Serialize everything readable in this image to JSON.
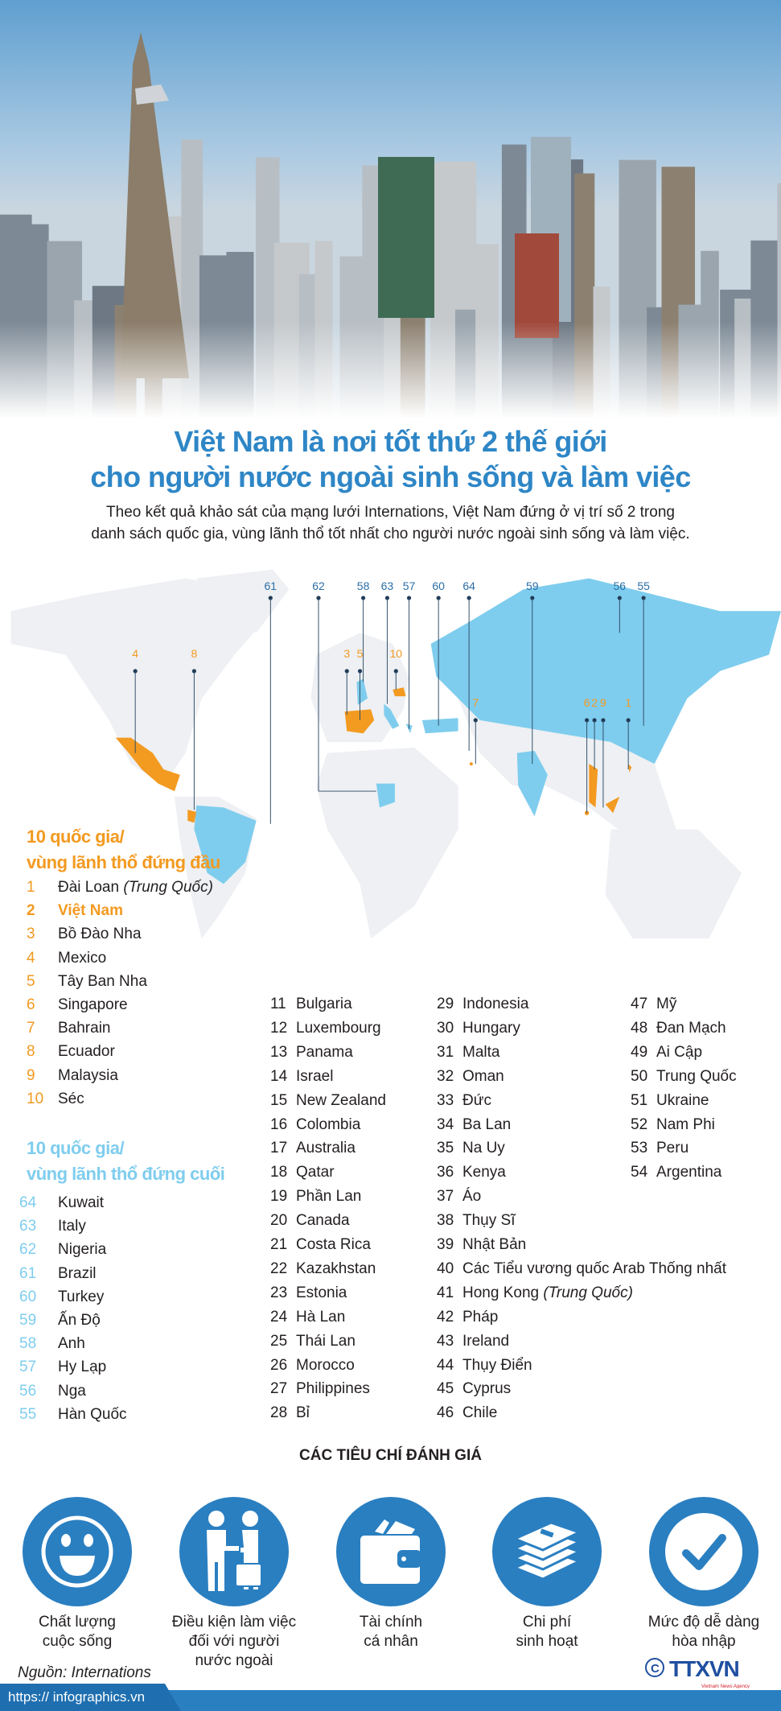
{
  "title": {
    "line1": "Việt Nam là nơi tốt thứ 2 thế giới",
    "line2": "cho người nước ngoài sinh sống và làm việc"
  },
  "subtitle": {
    "line1": "Theo kết quả khảo sát của mạng lưới Internations, Việt Nam đứng ở vị trí số 2 trong",
    "line2": "danh sách quốc gia, vùng lãnh thổ tốt nhất cho người nước ngoài sinh sống và làm việc."
  },
  "colors": {
    "title": "#2e86c6",
    "top": "#f39a21",
    "bottom": "#7fcdee",
    "circle": "#2a7fc1",
    "land": "#eef0f3"
  },
  "map_labels": {
    "bottom": [
      "61",
      "62",
      "58",
      "63",
      "57",
      "60",
      "64",
      "59",
      "56",
      "55"
    ],
    "top": [
      "4",
      "8",
      "3",
      "5",
      "10",
      "7",
      "6",
      "2",
      "9",
      "1"
    ]
  },
  "top10": {
    "heading1": "10 quốc gia/",
    "heading2": "vùng lãnh thổ đứng đầu",
    "items": [
      {
        "rank": "1",
        "name": "Đài Loan",
        "note": "(Trung Quốc)"
      },
      {
        "rank": "2",
        "name": "Việt Nam",
        "highlight": true
      },
      {
        "rank": "3",
        "name": "Bồ Đào Nha"
      },
      {
        "rank": "4",
        "name": "Mexico"
      },
      {
        "rank": "5",
        "name": "Tây Ban Nha"
      },
      {
        "rank": "6",
        "name": "Singapore"
      },
      {
        "rank": "7",
        "name": "Bahrain"
      },
      {
        "rank": "8",
        "name": "Ecuador"
      },
      {
        "rank": "9",
        "name": "Malaysia"
      },
      {
        "rank": "10",
        "name": "Séc"
      }
    ]
  },
  "bottom10": {
    "heading1": "10 quốc gia/",
    "heading2": "vùng lãnh thổ đứng cuối",
    "items": [
      {
        "rank": "64",
        "name": "Kuwait"
      },
      {
        "rank": "63",
        "name": "Italy"
      },
      {
        "rank": "62",
        "name": "Nigeria"
      },
      {
        "rank": "61",
        "name": "Brazil"
      },
      {
        "rank": "60",
        "name": "Turkey"
      },
      {
        "rank": "59",
        "name": "Ấn Độ"
      },
      {
        "rank": "58",
        "name": "Anh"
      },
      {
        "rank": "57",
        "name": "Hy Lạp"
      },
      {
        "rank": "56",
        "name": "Nga"
      },
      {
        "rank": "55",
        "name": "Hàn Quốc"
      }
    ]
  },
  "middle": [
    [
      {
        "rank": "11",
        "name": "Bulgaria"
      },
      {
        "rank": "12",
        "name": "Luxembourg"
      },
      {
        "rank": "13",
        "name": "Panama"
      },
      {
        "rank": "14",
        "name": "Israel"
      },
      {
        "rank": "15",
        "name": "New Zealand"
      },
      {
        "rank": "16",
        "name": "Colombia"
      },
      {
        "rank": "17",
        "name": "Australia"
      },
      {
        "rank": "18",
        "name": "Qatar"
      },
      {
        "rank": "19",
        "name": "Phần Lan"
      },
      {
        "rank": "20",
        "name": "Canada"
      },
      {
        "rank": "21",
        "name": "Costa Rica"
      },
      {
        "rank": "22",
        "name": "Kazakhstan"
      },
      {
        "rank": "23",
        "name": "Estonia"
      },
      {
        "rank": "24",
        "name": "Hà Lan"
      },
      {
        "rank": "25",
        "name": "Thái Lan"
      },
      {
        "rank": "26",
        "name": "Morocco"
      },
      {
        "rank": "27",
        "name": "Philippines"
      },
      {
        "rank": "28",
        "name": "Bỉ"
      }
    ],
    [
      {
        "rank": "29",
        "name": "Indonesia"
      },
      {
        "rank": "30",
        "name": "Hungary"
      },
      {
        "rank": "31",
        "name": "Malta"
      },
      {
        "rank": "32",
        "name": "Oman"
      },
      {
        "rank": "33",
        "name": "Đức"
      },
      {
        "rank": "34",
        "name": "Ba Lan"
      },
      {
        "rank": "35",
        "name": "Na Uy"
      },
      {
        "rank": "36",
        "name": "Kenya"
      },
      {
        "rank": "37",
        "name": "Áo"
      },
      {
        "rank": "38",
        "name": "Thụy Sĩ"
      },
      {
        "rank": "39",
        "name": "Nhật Bản"
      },
      {
        "rank": "40",
        "name": "Các Tiểu vương quốc Arab Thống nhất"
      },
      {
        "rank": "41",
        "name": "Hong Kong",
        "note": "(Trung Quốc)"
      },
      {
        "rank": "42",
        "name": "Pháp"
      },
      {
        "rank": "43",
        "name": "Ireland"
      },
      {
        "rank": "44",
        "name": "Thụy Điển"
      },
      {
        "rank": "45",
        "name": "Cyprus"
      },
      {
        "rank": "46",
        "name": "Chile"
      }
    ],
    [
      {
        "rank": "47",
        "name": "Mỹ"
      },
      {
        "rank": "48",
        "name": "Đan Mạch"
      },
      {
        "rank": "49",
        "name": "Ai Cập"
      },
      {
        "rank": "50",
        "name": "Trung Quốc"
      },
      {
        "rank": "51",
        "name": "Ukraine"
      },
      {
        "rank": "52",
        "name": "Nam Phi"
      },
      {
        "rank": "53",
        "name": "Peru"
      },
      {
        "rank": "54",
        "name": "Argentina"
      }
    ]
  ],
  "criteria": {
    "title": "CÁC TIÊU CHÍ ĐÁNH GIÁ",
    "items": [
      {
        "icon": "smiley-icon",
        "line1": "Chất lượng",
        "line2": "cuộc sống"
      },
      {
        "icon": "handshake-icon",
        "line1": "Điều kiện làm việc",
        "line2": "đối với người",
        "line3": "nước ngoài"
      },
      {
        "icon": "wallet-icon",
        "line1": "Tài chính",
        "line2": "cá nhân"
      },
      {
        "icon": "money-stack-icon",
        "line1": "Chi phí",
        "line2": "sinh hoạt"
      },
      {
        "icon": "check-circle-icon",
        "line1": "Mức độ dễ dàng",
        "line2": "hòa nhập"
      }
    ]
  },
  "source": "Nguồn: Internations",
  "url": "https:// infographics.vn",
  "logo": {
    "text": "TTXVN",
    "tagline": "Vietnam News Agency",
    "copyright": "©"
  }
}
